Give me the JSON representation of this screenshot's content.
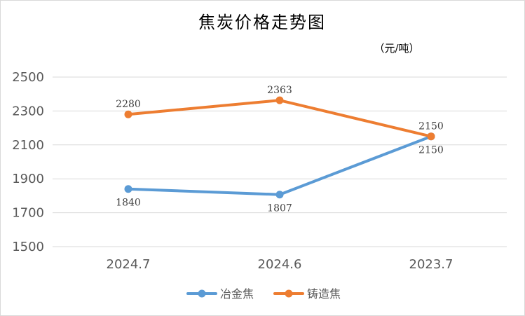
{
  "chart_data": {
    "type": "line",
    "title": "焦炭价格走势图",
    "unit_label": "（元/吨）",
    "categories": [
      "2024.7",
      "2024.6",
      "2023.7"
    ],
    "ylim": [
      1500,
      2500
    ],
    "yticks": [
      1500,
      1700,
      1900,
      2100,
      2300,
      2500
    ],
    "grid": true,
    "legend_position": "bottom",
    "series": [
      {
        "name": "冶金焦",
        "values": [
          1840,
          1807,
          2150
        ],
        "color": "#5b9bd5",
        "label_position": "below"
      },
      {
        "name": "铸造焦",
        "values": [
          2280,
          2363,
          2150
        ],
        "color": "#ed7d31",
        "label_position": "above"
      }
    ]
  }
}
